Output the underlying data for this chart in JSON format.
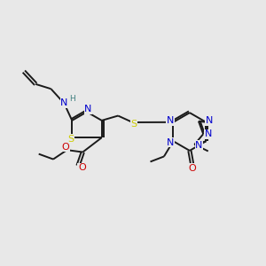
{
  "bg_color": "#e8e8e8",
  "bond_color": "#1a1a1a",
  "colors": {
    "N": "#0000cc",
    "S": "#cccc00",
    "O": "#cc0000",
    "C": "#1a1a1a",
    "H": "#408080"
  },
  "lw": 1.4,
  "fs": 8.0,
  "fs_small": 6.5,
  "xlim": [
    0,
    10
  ],
  "ylim": [
    0,
    10
  ]
}
